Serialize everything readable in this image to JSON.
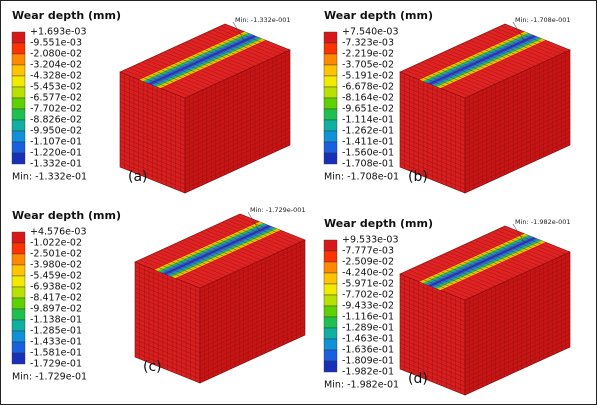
{
  "panels": [
    {
      "title": "Wear depth (mm)",
      "legend_labels": [
        "+1.693e-03",
        "-9.551e-03",
        "-2.080e-02",
        "-3.204e-02",
        "-4.328e-02",
        "-5.453e-02",
        "-6.577e-02",
        "-7.702e-02",
        "-8.826e-02",
        "-9.950e-02",
        "-1.107e-01",
        "-1.220e-01",
        "-1.332e-01"
      ],
      "min_label": "Min: -1.332e-01",
      "probe_label": "Min: -1.332e-001",
      "panel_label": "(a)"
    },
    {
      "title": "Wear depth (mm)",
      "legend_labels": [
        "+7.540e-03",
        "-7.323e-03",
        "-2.219e-02",
        "-3.705e-02",
        "-5.191e-02",
        "-6.678e-02",
        "-8.164e-02",
        "-9.651e-02",
        "-1.114e-01",
        "-1.262e-01",
        "-1.411e-01",
        "-1.560e-01",
        "-1.708e-01"
      ],
      "min_label": "Min: -1.708e-01",
      "probe_label": "Min: -1.708e-001",
      "panel_label": "(b)"
    },
    {
      "title": "Wear depth (mm)",
      "legend_labels": [
        "+4.576e-03",
        "-1.022e-02",
        "-2.501e-02",
        "-3.980e-02",
        "-5.459e-02",
        "-6.938e-02",
        "-8.417e-02",
        "-9.897e-02",
        "-1.138e-01",
        "-1.285e-01",
        "-1.433e-01",
        "-1.581e-01",
        "-1.729e-01"
      ],
      "min_label": "Min: -1.729e-01",
      "probe_label": "Min: -1.729e-001",
      "panel_label": "(c)"
    },
    {
      "title": "Wear depth (mm)",
      "legend_labels": [
        "+9.533e-03",
        "-7.777e-03",
        "-2.509e-02",
        "-4.240e-02",
        "-5.971e-02",
        "-7.702e-02",
        "-9.433e-02",
        "-1.116e-01",
        "-1.289e-01",
        "-1.463e-01",
        "-1.636e-01",
        "-1.809e-01",
        "-1.982e-01"
      ],
      "min_label": "Min: -1.982e-01",
      "probe_label": "Min: -1.982e-001",
      "panel_label": "(d)"
    }
  ]
}
